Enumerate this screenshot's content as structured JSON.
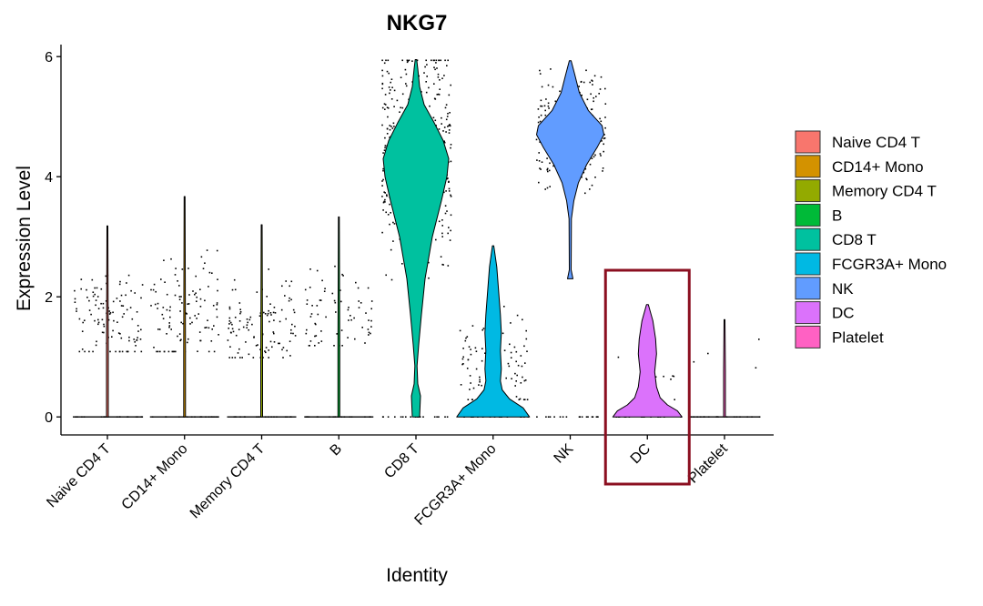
{
  "chart_data": {
    "type": "violin",
    "title": "NKG7",
    "xlabel": "Identity",
    "ylabel": "Expression Level",
    "ylim": [
      -0.3,
      6.2
    ],
    "yticks": [
      0,
      2,
      4,
      6
    ],
    "grid": false,
    "legend_position": "right",
    "categories": [
      "Naive CD4 T",
      "CD14+ Mono",
      "Memory CD4 T",
      "B",
      "CD8 T",
      "FCGR3A+ Mono",
      "NK",
      "DC",
      "Platelet"
    ],
    "colors": [
      "#F8766D",
      "#D39200",
      "#93AA00",
      "#00BA38",
      "#00C19F",
      "#00B9E3",
      "#619CFF",
      "#DB72FB",
      "#FF61C3"
    ],
    "max_expression": [
      3.18,
      3.67,
      3.2,
      3.33,
      5.95,
      2.85,
      5.93,
      1.87,
      1.62
    ],
    "nonzero_band": [
      [
        1.1,
        3.2
      ],
      [
        1.1,
        3.7
      ],
      [
        1.0,
        3.2
      ],
      [
        1.2,
        3.3
      ],
      [
        0.0,
        5.95
      ],
      [
        0.3,
        2.85
      ],
      [
        2.3,
        5.93
      ],
      [
        0.3,
        1.87
      ],
      [
        0.75,
        1.62
      ]
    ],
    "highlight": {
      "category": "DC",
      "color": "#8B0F20"
    }
  }
}
